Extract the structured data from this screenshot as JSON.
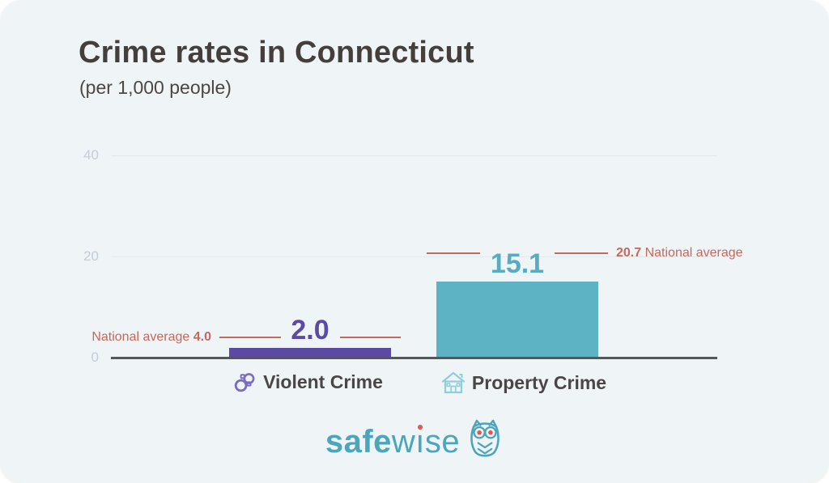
{
  "header": {
    "title": "Crime rates in Connecticut",
    "subtitle": "(per 1,000 people)"
  },
  "chart_data": {
    "type": "bar",
    "title": "Crime rates in Connecticut",
    "subtitle": "(per 1,000 people)",
    "categories": [
      "Violent Crime",
      "Property Crime"
    ],
    "values": [
      2.0,
      15.1
    ],
    "value_labels": [
      "2.0",
      "15.1"
    ],
    "national_averages": [
      4.0,
      20.7
    ],
    "avg_labels": [
      {
        "prefix": "National average",
        "value": "4.0",
        "side": "left"
      },
      {
        "value": "20.7",
        "suffix": "National average",
        "side": "right"
      }
    ],
    "ylim": [
      0,
      40
    ],
    "yticks": [
      0,
      20,
      40
    ],
    "ytick_labels": [
      "0",
      "20",
      "40"
    ],
    "grid": "horizontal, ticks 20 and 40 only",
    "legend": "none",
    "category_icons": [
      "handcuffs-icon",
      "house-icon"
    ],
    "bar_colors": [
      "#5b4aa2",
      "#5db3c4"
    ],
    "value_label_colors": [
      "#5b4aa2",
      "#56adc2"
    ],
    "avg_line_color": "#c4695e"
  },
  "footer": {
    "logo_bold": "safe",
    "logo_light": "wise",
    "logo_name": "safewise-logo"
  },
  "colors": {
    "card_background": "#eff4f6",
    "page_background": "#ffffff",
    "title_text": "#443e3c",
    "axis_baseline": "#56575b",
    "tick_text": "#c3ced9",
    "owl_teal": "#4ba6bc",
    "owl_eye_orange": "#e2574c"
  }
}
